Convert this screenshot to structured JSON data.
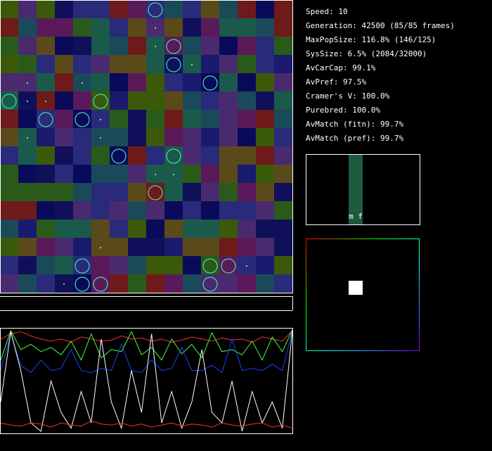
{
  "stats": [
    "Speed: 10",
    "Generation: 42500 (85/85 frames)",
    "MaxPopSize: 116.8% (146/125)",
    "SysSize: 6.5% (2084/32000)",
    "AvCarCap: 99.1%",
    "AvPref: 97.5%",
    "Cramer's V: 100.0%",
    "Purebred: 100.0%",
    "AvMatch (fitn): 99.7%",
    "AvMatch (pref): 99.7%"
  ],
  "sex_labels": "m f",
  "chart_data": {
    "type": "line",
    "ylim": [
      0,
      1
    ],
    "series": [
      {
        "color": "#ff3030",
        "values": [
          0.9,
          0.95,
          0.97,
          0.93,
          0.9,
          0.88,
          0.9,
          0.87,
          0.92,
          0.9,
          0.88,
          0.89,
          0.93,
          0.9,
          0.91,
          0.88,
          0.9,
          0.87,
          0.89,
          0.92,
          0.9,
          0.88,
          0.91,
          0.89,
          0.9,
          0.87,
          0.92,
          0.9,
          0.88,
          0.98
        ]
      },
      {
        "color": "#40ff40",
        "values": [
          0.7,
          0.98,
          0.8,
          0.85,
          0.78,
          0.82,
          0.75,
          0.88,
          0.7,
          0.95,
          0.72,
          0.8,
          0.78,
          0.97,
          0.75,
          0.82,
          0.7,
          0.9,
          0.76,
          0.85,
          0.72,
          0.96,
          0.78,
          0.8,
          0.75,
          0.88,
          0.7,
          0.92,
          0.78,
          0.99
        ]
      },
      {
        "color": "#2040ff",
        "values": [
          0.6,
          0.95,
          0.65,
          0.58,
          0.7,
          0.6,
          0.62,
          0.8,
          0.6,
          0.58,
          0.62,
          0.6,
          0.85,
          0.6,
          0.58,
          0.7,
          0.6,
          0.62,
          0.82,
          0.6,
          0.6,
          0.65,
          0.58,
          0.9,
          0.6,
          0.62,
          0.6,
          0.66,
          0.6,
          0.98
        ]
      },
      {
        "color": "#ffffff",
        "values": [
          0.3,
          0.97,
          0.6,
          0.1,
          0.02,
          0.5,
          0.2,
          0.05,
          0.4,
          0.1,
          0.9,
          0.3,
          0.05,
          0.6,
          0.2,
          0.95,
          0.1,
          0.4,
          0.05,
          0.3,
          0.8,
          0.2,
          0.1,
          0.5,
          0.02,
          0.4,
          0.1,
          0.3,
          0.05,
          0.98
        ]
      },
      {
        "color": "#ff3030",
        "values": [
          0.1,
          0.08,
          0.07,
          0.1,
          0.09,
          0.06,
          0.1,
          0.08,
          0.07,
          0.12,
          0.09,
          0.08,
          0.1,
          0.07,
          0.09,
          0.06,
          0.08,
          0.1,
          0.07,
          0.09,
          0.08,
          0.06,
          0.1,
          0.08,
          0.07,
          0.09,
          0.1,
          0.06,
          0.08,
          0.05
        ]
      }
    ]
  }
}
